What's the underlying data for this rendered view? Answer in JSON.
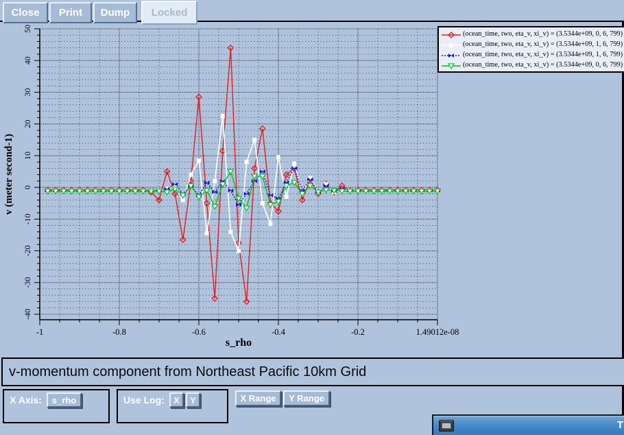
{
  "toolbar": {
    "close": "Close",
    "print": "Print",
    "dump": "Dump",
    "locked": "Locked"
  },
  "chart_data": {
    "type": "line",
    "title": "v-momentum component from Northeast Pacific 10km Grid",
    "xlabel": "s_rho",
    "ylabel": "v (meter second-1)",
    "grid": true,
    "legend_position": "top-right",
    "x_axis": {
      "min": -1,
      "max": 0,
      "minor_step": 0.05,
      "tick_values": [
        -1,
        -0.8,
        -0.6,
        -0.4,
        -0.2,
        0
      ],
      "tick_labels": [
        "-1",
        "-0.8",
        "-0.6",
        "-0.4",
        "-0.2",
        "1.49012e-08"
      ]
    },
    "y_axis": {
      "min": -40,
      "max": 50,
      "tick_step": 10,
      "minor_step": 2
    },
    "x": [
      -0.98,
      -0.96,
      -0.94,
      -0.92,
      -0.9,
      -0.88,
      -0.86,
      -0.84,
      -0.82,
      -0.8,
      -0.78,
      -0.76,
      -0.74,
      -0.72,
      -0.7,
      -0.68,
      -0.66,
      -0.64,
      -0.62,
      -0.6,
      -0.58,
      -0.56,
      -0.54,
      -0.52,
      -0.5,
      -0.48,
      -0.46,
      -0.44,
      -0.42,
      -0.4,
      -0.38,
      -0.36,
      -0.34,
      -0.32,
      -0.3,
      -0.28,
      -0.26,
      -0.24,
      -0.22,
      -0.2,
      -0.18,
      -0.16,
      -0.14,
      -0.12,
      -0.1,
      -0.08,
      -0.06,
      -0.04,
      -0.02,
      0.0
    ],
    "series": [
      {
        "name": "series-red",
        "label": "(ocean_time, two, eta_v, xi_v) = (3.5344e+09, 0, 6, 799)",
        "color": "#e81a1a",
        "marker": "diamond",
        "line": "solid",
        "values": [
          -0.8,
          -0.8,
          -0.8,
          -0.8,
          -0.8,
          -0.8,
          -0.8,
          -0.8,
          -0.8,
          -0.8,
          -0.8,
          -0.8,
          -0.8,
          -1.5,
          -4,
          5,
          -2,
          -16.5,
          2,
          28.5,
          -5,
          -35,
          11.5,
          44,
          -17.5,
          -36,
          6,
          18.5,
          -5,
          -7.5,
          4,
          6,
          -4,
          2.5,
          -2,
          1,
          -1.5,
          0.5,
          -1,
          -0.8,
          -0.8,
          -0.8,
          -0.8,
          -0.8,
          -0.8,
          -0.8,
          -0.8,
          -0.8,
          -0.8,
          -0.8
        ]
      },
      {
        "name": "series-white",
        "label": "(ocean_time, two, eta_v, xi_v) = (3.5344e+09, 1, 6, 799)",
        "color": "#ffffff",
        "marker": "square",
        "line": "solid",
        "values": [
          -1,
          -1,
          -1,
          -1,
          -1,
          -1,
          -1,
          -1,
          -1,
          -1,
          -1,
          -1,
          -1,
          -1,
          -1,
          -0.5,
          0.5,
          -4,
          4,
          8.5,
          -14.5,
          2,
          22.5,
          -14,
          -20,
          8,
          15,
          -5,
          -11.5,
          9.5,
          -3,
          7.5,
          -2,
          3,
          -1.5,
          1,
          -1.5,
          -1,
          -1,
          -1,
          -1,
          -1,
          -1,
          -1,
          -1,
          -1,
          -1,
          -1,
          -1,
          -1
        ]
      },
      {
        "name": "series-blue",
        "label": "(ocean_time, two, eta_v, xi_v) = (3.5344e+09, 1, 6, 799)",
        "color": "#1616cc",
        "marker": "bowtie",
        "line": "dotted",
        "values": [
          -1,
          -1,
          -1,
          -1,
          -1,
          -1,
          -1,
          -1,
          -1,
          -1,
          -1,
          -1,
          -1,
          -1,
          -1,
          -0.5,
          1,
          -2,
          0.5,
          -2.5,
          1.5,
          -1.5,
          2,
          -1,
          -5.5,
          -2,
          2,
          5,
          -2.5,
          -3.5,
          1.5,
          6,
          -1,
          2.5,
          -1.5,
          0.5,
          -1,
          -0.5,
          -1,
          -1,
          -1,
          -1,
          -1,
          -1,
          -1,
          -1,
          -1,
          -1,
          -1,
          -1
        ]
      },
      {
        "name": "series-green",
        "label": "(ocean_time, two, eta_v, xi_v) = (3.5344e+09, 0, 6, 799)",
        "color": "#00c61c",
        "marker": "triangle-down",
        "line": "solid",
        "values": [
          -1.2,
          -1.2,
          -1.2,
          -1.2,
          -1.2,
          -1.2,
          -1.2,
          -1.2,
          -1.2,
          -1.2,
          -1.2,
          -1.2,
          -1.2,
          -1.2,
          -1.2,
          -1.5,
          -0.5,
          -2.5,
          0.5,
          -3,
          -1,
          -6,
          1,
          5,
          -3.5,
          -6.5,
          3.5,
          3.5,
          -5.5,
          -4.5,
          0.5,
          1.5,
          -2,
          0.5,
          -1.5,
          -0.8,
          -1,
          -1.2,
          -1.2,
          -1.2,
          -1.2,
          -1.2,
          -1.2,
          -1.2,
          -1.2,
          -1.2,
          -1.2,
          -1.2,
          -1.2,
          -1.2
        ]
      }
    ]
  },
  "controls": {
    "x_axis_label": "X Axis:",
    "x_axis_value": "s_rho",
    "use_log_label": "Use Log:",
    "log_x": "X",
    "log_y": "Y",
    "x_range": "X Range",
    "y_range": "Y Range"
  },
  "mini_window": {
    "title_fragment": "T"
  },
  "colors": {
    "background": "#afc3dc",
    "button_face": "#a6bbd6",
    "locked_face": "#e3ecf6",
    "legend_bg": "#e9eef6",
    "grid": "#1c1c1c",
    "titlebar_blue": "#3c80c2"
  }
}
